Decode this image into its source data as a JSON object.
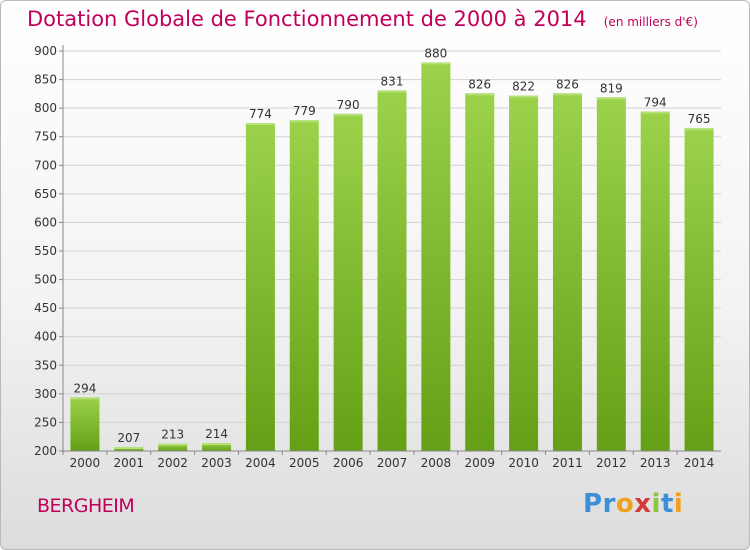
{
  "chart_data": {
    "type": "bar",
    "title": "Dotation Globale de Fonctionnement de 2000 à 2014",
    "subtitle": "(en milliers d'€)",
    "categories": [
      "2000",
      "2001",
      "2002",
      "2003",
      "2004",
      "2005",
      "2006",
      "2007",
      "2008",
      "2009",
      "2010",
      "2011",
      "2012",
      "2013",
      "2014"
    ],
    "values": [
      294,
      207,
      213,
      214,
      774,
      779,
      790,
      831,
      880,
      826,
      822,
      826,
      819,
      794,
      765
    ],
    "ylim": [
      200,
      900
    ],
    "yticks": [
      200,
      250,
      300,
      350,
      400,
      450,
      500,
      550,
      600,
      650,
      700,
      750,
      800,
      850,
      900
    ],
    "grid": true,
    "bar_color": "#7fbf2a"
  },
  "commune": "BERGHEIM",
  "logo": {
    "letters": [
      "P",
      "r",
      "o",
      "x",
      "i",
      "t",
      "i"
    ],
    "colors": [
      "#3a8fd8",
      "#3a8fd8",
      "#f0a01e",
      "#d43a3a",
      "#8cc63f",
      "#3a8fd8",
      "#f0a01e"
    ]
  }
}
